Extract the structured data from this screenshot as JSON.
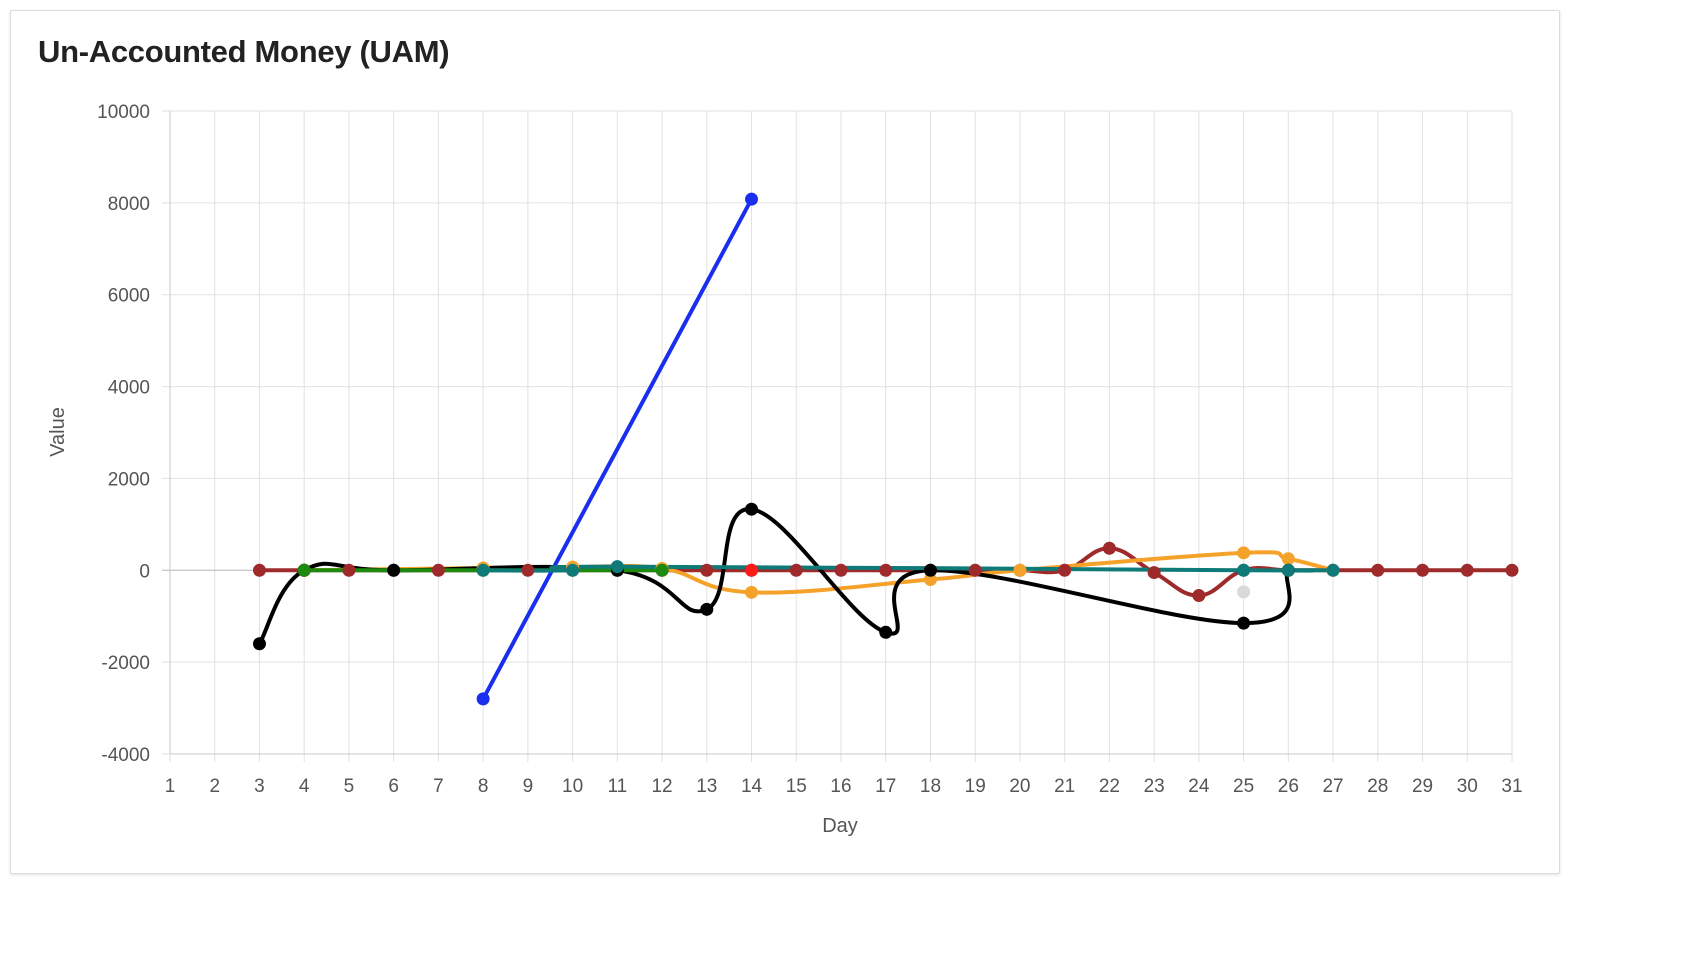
{
  "card": {
    "title": "Un-Accounted Money (UAM)"
  },
  "chart_data": {
    "type": "line",
    "title": "Un-Accounted Money (UAM)",
    "xlabel": "Day",
    "ylabel": "Value",
    "x_ticks": [
      1,
      2,
      3,
      4,
      5,
      6,
      7,
      8,
      9,
      10,
      11,
      12,
      13,
      14,
      15,
      16,
      17,
      18,
      19,
      20,
      21,
      22,
      23,
      24,
      25,
      26,
      27,
      28,
      29,
      30,
      31
    ],
    "xlim": [
      1,
      31
    ],
    "ylim": [
      -4000,
      10000
    ],
    "y_ticks": [
      -4000,
      -2000,
      0,
      2000,
      4000,
      6000,
      8000,
      10000
    ],
    "grid": true,
    "legend": "none",
    "series": [
      {
        "color": "#9e2a2b",
        "points": [
          [
            3,
            0
          ],
          [
            4,
            0
          ],
          [
            5,
            0
          ],
          [
            6,
            0
          ],
          [
            7,
            0
          ],
          [
            8,
            0
          ],
          [
            9,
            0
          ],
          [
            10,
            0
          ],
          [
            11,
            0
          ],
          [
            12,
            0
          ],
          [
            13,
            0
          ],
          [
            14,
            0
          ],
          [
            15,
            0
          ],
          [
            16,
            0
          ],
          [
            17,
            0
          ],
          [
            18,
            0
          ],
          [
            19,
            0
          ],
          [
            20,
            0
          ],
          [
            21,
            0
          ],
          [
            22,
            480
          ],
          [
            23,
            -50
          ],
          [
            24,
            -550
          ],
          [
            25,
            0
          ],
          [
            26,
            0
          ],
          [
            27,
            0
          ],
          [
            28,
            0
          ],
          [
            29,
            0
          ],
          [
            30,
            0
          ],
          [
            31,
            0
          ]
        ]
      },
      {
        "color": "#f5a22a",
        "points": [
          [
            4,
            0
          ],
          [
            8,
            50
          ],
          [
            10,
            70
          ],
          [
            12,
            40
          ],
          [
            14,
            -480
          ],
          [
            18,
            -200
          ],
          [
            20,
            0
          ],
          [
            25,
            380
          ],
          [
            26,
            250
          ],
          [
            27,
            0
          ]
        ]
      },
      {
        "color": "#000000",
        "points": [
          [
            3,
            -1600
          ],
          [
            4,
            0
          ],
          [
            6,
            0
          ],
          [
            11,
            0
          ],
          [
            13,
            -850
          ],
          [
            14,
            1330
          ],
          [
            17,
            -1350
          ],
          [
            18,
            0
          ],
          [
            25,
            -1150
          ],
          [
            26,
            0
          ]
        ]
      },
      {
        "color": "#1a2ef0",
        "points": [
          [
            8,
            -2800
          ],
          [
            14,
            8080
          ]
        ]
      },
      {
        "color": "#1c8a0e",
        "points": [
          [
            4,
            0
          ],
          [
            12,
            0
          ]
        ]
      },
      {
        "color": "#ff1a1a",
        "points": [
          [
            14,
            0
          ]
        ]
      },
      {
        "color": "#d9d9d9",
        "points": [
          [
            25,
            -470
          ]
        ]
      },
      {
        "color": "#0f7b78",
        "points": [
          [
            8,
            0
          ],
          [
            10,
            0
          ],
          [
            11,
            80
          ],
          [
            25,
            0
          ],
          [
            26,
            0
          ],
          [
            27,
            0
          ]
        ]
      }
    ]
  }
}
